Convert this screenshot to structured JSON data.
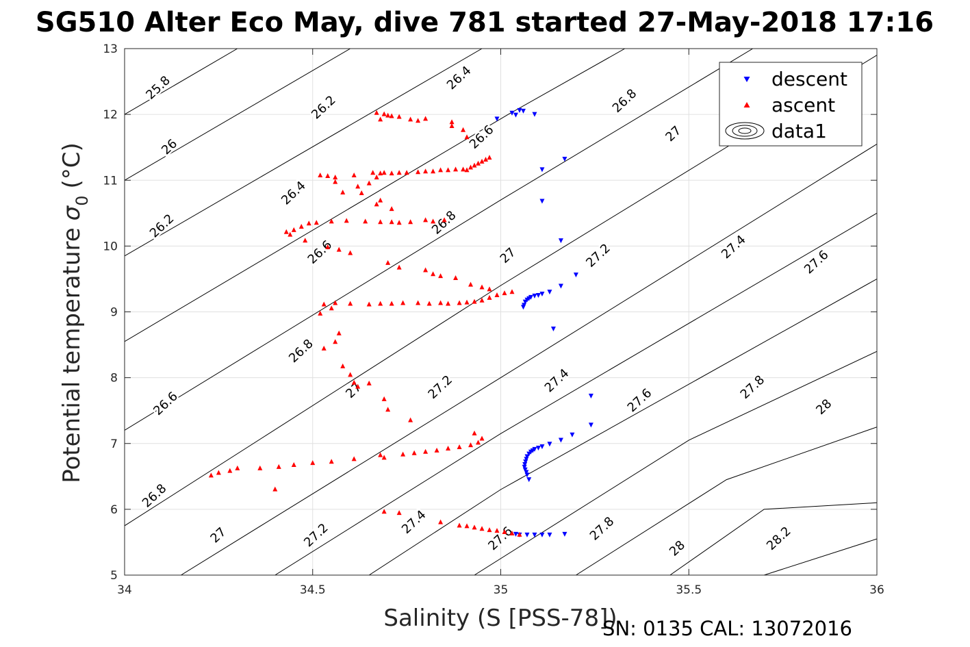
{
  "chart_data": {
    "type": "scatter",
    "title": "SG510 Alter Eco May, dive 781 started 27-May-2018 17:16",
    "xlabel": "Salinity (S [PSS-78])",
    "ylabel": "Potential temperature",
    "ylabel_sigma": "σ",
    "ylabel_sub": "0",
    "ylabel_unit": "(°C)",
    "footer": "SN: 0135  CAL: 13072016",
    "xlim": [
      34,
      36
    ],
    "ylim": [
      5,
      13
    ],
    "xticks": [
      34,
      34.5,
      35,
      35.5,
      36
    ],
    "xtick_labels": [
      "34",
      "34.5",
      "35",
      "35.5",
      "36"
    ],
    "yticks": [
      5,
      6,
      7,
      8,
      9,
      10,
      11,
      12,
      13
    ],
    "ytick_labels": [
      "5",
      "6",
      "7",
      "8",
      "9",
      "10",
      "11",
      "12",
      "13"
    ],
    "grid": true,
    "legend_position": "top-right",
    "legend": [
      "descent",
      "ascent",
      "data1"
    ],
    "colors": {
      "descent": "#0000ff",
      "ascent": "#ff0000",
      "contour": "#000000",
      "grid": "#e0e0e0"
    },
    "contour_levels": [
      "25.8",
      "26",
      "26.2",
      "26.4",
      "26.6",
      "26.8",
      "27",
      "27.2",
      "27.4",
      "27.6",
      "27.8",
      "28",
      "28.2"
    ],
    "contour_label_points": [
      {
        "text": "25.8",
        "x": 34.09,
        "y": 12.4
      },
      {
        "text": "26",
        "x": 34.12,
        "y": 11.5
      },
      {
        "text": "26.2",
        "x": 34.1,
        "y": 10.3
      },
      {
        "text": "26.6",
        "x": 34.11,
        "y": 7.6
      },
      {
        "text": "26.8",
        "x": 34.08,
        "y": 6.2
      },
      {
        "text": "26.2",
        "x": 34.53,
        "y": 12.1
      },
      {
        "text": "26.4",
        "x": 34.45,
        "y": 10.8
      },
      {
        "text": "26.6",
        "x": 34.52,
        "y": 9.9
      },
      {
        "text": "26.8",
        "x": 34.47,
        "y": 8.4
      },
      {
        "text": "27",
        "x": 34.25,
        "y": 5.6
      },
      {
        "text": "26.4",
        "x": 34.89,
        "y": 12.55
      },
      {
        "text": "26.6",
        "x": 34.95,
        "y": 11.65
      },
      {
        "text": "26.8",
        "x": 34.85,
        "y": 10.35
      },
      {
        "text": "27",
        "x": 34.61,
        "y": 7.8
      },
      {
        "text": "27.2",
        "x": 34.51,
        "y": 5.6
      },
      {
        "text": "27",
        "x": 35.02,
        "y": 9.85
      },
      {
        "text": "27.2",
        "x": 34.84,
        "y": 7.85
      },
      {
        "text": "27.4",
        "x": 34.77,
        "y": 5.8
      },
      {
        "text": "26.8",
        "x": 35.33,
        "y": 12.2
      },
      {
        "text": "27",
        "x": 35.46,
        "y": 11.7
      },
      {
        "text": "27.2",
        "x": 35.26,
        "y": 9.85
      },
      {
        "text": "27.4",
        "x": 35.15,
        "y": 7.95
      },
      {
        "text": "27.6",
        "x": 35.0,
        "y": 5.55
      },
      {
        "text": "27.4",
        "x": 35.62,
        "y": 9.98
      },
      {
        "text": "27.6",
        "x": 35.37,
        "y": 7.65
      },
      {
        "text": "27.8",
        "x": 35.27,
        "y": 5.7
      },
      {
        "text": "27.6",
        "x": 35.84,
        "y": 9.75
      },
      {
        "text": "27.8",
        "x": 35.67,
        "y": 7.85
      },
      {
        "text": "28",
        "x": 35.47,
        "y": 5.4
      },
      {
        "text": "28",
        "x": 35.86,
        "y": 7.55
      },
      {
        "text": "28.2",
        "x": 35.74,
        "y": 5.55
      }
    ],
    "series": [
      {
        "name": "descent",
        "marker": "triangle-down",
        "color": "#0000ff",
        "points": [
          [
            34.99,
            11.93
          ],
          [
            35.03,
            12.02
          ],
          [
            35.05,
            12.06
          ],
          [
            35.06,
            12.05
          ],
          [
            35.04,
            11.99
          ],
          [
            35.09,
            12.0
          ],
          [
            35.17,
            11.32
          ],
          [
            35.11,
            11.16
          ],
          [
            35.11,
            10.68
          ],
          [
            35.16,
            10.08
          ],
          [
            35.2,
            9.56
          ],
          [
            35.16,
            9.39
          ],
          [
            35.13,
            9.3
          ],
          [
            35.11,
            9.27
          ],
          [
            35.1,
            9.25
          ],
          [
            35.09,
            9.24
          ],
          [
            35.08,
            9.22
          ],
          [
            35.075,
            9.2
          ],
          [
            35.07,
            9.18
          ],
          [
            35.065,
            9.15
          ],
          [
            35.062,
            9.1
          ],
          [
            35.06,
            9.07
          ],
          [
            35.14,
            8.74
          ],
          [
            35.24,
            7.72
          ],
          [
            35.24,
            7.28
          ],
          [
            35.19,
            7.13
          ],
          [
            35.16,
            7.05
          ],
          [
            35.13,
            6.99
          ],
          [
            35.11,
            6.95
          ],
          [
            35.1,
            6.93
          ],
          [
            35.09,
            6.91
          ],
          [
            35.085,
            6.89
          ],
          [
            35.08,
            6.87
          ],
          [
            35.075,
            6.84
          ],
          [
            35.07,
            6.8
          ],
          [
            35.068,
            6.76
          ],
          [
            35.066,
            6.72
          ],
          [
            35.064,
            6.68
          ],
          [
            35.063,
            6.64
          ],
          [
            35.065,
            6.6
          ],
          [
            35.068,
            6.56
          ],
          [
            35.07,
            6.52
          ],
          [
            35.075,
            6.45
          ],
          [
            35.04,
            5.62
          ],
          [
            35.05,
            5.61
          ],
          [
            35.07,
            5.61
          ],
          [
            35.09,
            5.61
          ],
          [
            35.11,
            5.61
          ],
          [
            35.13,
            5.61
          ],
          [
            35.17,
            5.62
          ]
        ]
      },
      {
        "name": "ascent",
        "marker": "triangle-up",
        "color": "#ff0000",
        "points": [
          [
            34.67,
            12.03
          ],
          [
            34.69,
            12.01
          ],
          [
            34.7,
            11.99
          ],
          [
            34.71,
            11.98
          ],
          [
            34.73,
            11.97
          ],
          [
            34.68,
            11.93
          ],
          [
            34.76,
            11.93
          ],
          [
            34.78,
            11.91
          ],
          [
            34.8,
            11.94
          ],
          [
            34.87,
            11.89
          ],
          [
            34.87,
            11.83
          ],
          [
            34.9,
            11.77
          ],
          [
            34.91,
            11.66
          ],
          [
            34.52,
            11.08
          ],
          [
            34.54,
            11.07
          ],
          [
            34.56,
            11.05
          ],
          [
            34.61,
            11.08
          ],
          [
            34.66,
            11.12
          ],
          [
            34.68,
            11.11
          ],
          [
            34.69,
            11.12
          ],
          [
            34.71,
            11.11
          ],
          [
            34.73,
            11.12
          ],
          [
            34.75,
            11.12
          ],
          [
            34.78,
            11.13
          ],
          [
            34.8,
            11.14
          ],
          [
            34.82,
            11.14
          ],
          [
            34.84,
            11.16
          ],
          [
            34.86,
            11.16
          ],
          [
            34.88,
            11.17
          ],
          [
            34.9,
            11.17
          ],
          [
            34.91,
            11.16
          ],
          [
            34.92,
            11.2
          ],
          [
            34.93,
            11.23
          ],
          [
            34.94,
            11.26
          ],
          [
            34.95,
            11.29
          ],
          [
            34.96,
            11.32
          ],
          [
            34.97,
            11.35
          ],
          [
            34.67,
            11.05
          ],
          [
            34.65,
            10.96
          ],
          [
            34.56,
            10.98
          ],
          [
            34.62,
            10.91
          ],
          [
            34.58,
            10.82
          ],
          [
            34.63,
            10.81
          ],
          [
            34.67,
            10.64
          ],
          [
            34.68,
            10.7
          ],
          [
            34.71,
            10.57
          ],
          [
            34.43,
            10.22
          ],
          [
            34.45,
            10.25
          ],
          [
            34.47,
            10.3
          ],
          [
            34.49,
            10.35
          ],
          [
            34.51,
            10.36
          ],
          [
            34.55,
            10.38
          ],
          [
            34.59,
            10.39
          ],
          [
            34.64,
            10.38
          ],
          [
            34.68,
            10.37
          ],
          [
            34.71,
            10.37
          ],
          [
            34.73,
            10.36
          ],
          [
            34.76,
            10.37
          ],
          [
            34.8,
            10.4
          ],
          [
            34.82,
            10.38
          ],
          [
            34.85,
            10.4
          ],
          [
            34.44,
            10.18
          ],
          [
            34.48,
            10.09
          ],
          [
            34.54,
            9.99
          ],
          [
            34.57,
            9.95
          ],
          [
            34.6,
            9.9
          ],
          [
            34.7,
            9.75
          ],
          [
            34.73,
            9.68
          ],
          [
            34.8,
            9.64
          ],
          [
            34.82,
            9.58
          ],
          [
            34.84,
            9.55
          ],
          [
            34.88,
            9.52
          ],
          [
            34.92,
            9.42
          ],
          [
            34.95,
            9.38
          ],
          [
            34.97,
            9.35
          ],
          [
            34.53,
            9.12
          ],
          [
            34.56,
            9.14
          ],
          [
            34.6,
            9.13
          ],
          [
            34.65,
            9.12
          ],
          [
            34.68,
            9.13
          ],
          [
            34.71,
            9.13
          ],
          [
            34.74,
            9.14
          ],
          [
            34.78,
            9.14
          ],
          [
            34.81,
            9.13
          ],
          [
            34.84,
            9.14
          ],
          [
            34.86,
            9.13
          ],
          [
            34.89,
            9.14
          ],
          [
            34.91,
            9.15
          ],
          [
            34.93,
            9.16
          ],
          [
            34.95,
            9.18
          ],
          [
            34.97,
            9.22
          ],
          [
            34.99,
            9.26
          ],
          [
            35.01,
            9.29
          ],
          [
            35.03,
            9.31
          ],
          [
            34.52,
            8.98
          ],
          [
            34.55,
            9.06
          ],
          [
            34.57,
            8.68
          ],
          [
            34.56,
            8.55
          ],
          [
            34.53,
            8.45
          ],
          [
            34.58,
            8.18
          ],
          [
            34.6,
            8.05
          ],
          [
            34.61,
            7.93
          ],
          [
            34.62,
            7.87
          ],
          [
            34.65,
            7.92
          ],
          [
            34.69,
            7.68
          ],
          [
            34.7,
            7.52
          ],
          [
            34.76,
            7.36
          ],
          [
            34.23,
            6.52
          ],
          [
            34.25,
            6.56
          ],
          [
            34.28,
            6.59
          ],
          [
            34.3,
            6.63
          ],
          [
            34.36,
            6.63
          ],
          [
            34.41,
            6.65
          ],
          [
            34.45,
            6.68
          ],
          [
            34.5,
            6.71
          ],
          [
            34.55,
            6.73
          ],
          [
            34.61,
            6.77
          ],
          [
            34.69,
            6.79
          ],
          [
            34.74,
            6.84
          ],
          [
            34.77,
            6.86
          ],
          [
            34.8,
            6.88
          ],
          [
            34.83,
            6.9
          ],
          [
            34.86,
            6.93
          ],
          [
            34.89,
            6.95
          ],
          [
            34.92,
            6.98
          ],
          [
            34.94,
            7.02
          ],
          [
            34.95,
            7.08
          ],
          [
            34.93,
            7.16
          ],
          [
            34.4,
            6.31
          ],
          [
            34.68,
            6.83
          ],
          [
            34.69,
            5.97
          ],
          [
            34.73,
            5.95
          ],
          [
            34.84,
            5.81
          ],
          [
            34.89,
            5.76
          ],
          [
            34.91,
            5.75
          ],
          [
            34.93,
            5.73
          ],
          [
            34.95,
            5.71
          ],
          [
            34.97,
            5.69
          ],
          [
            34.99,
            5.68
          ],
          [
            35.01,
            5.66
          ],
          [
            35.03,
            5.64
          ],
          [
            35.05,
            5.62
          ]
        ]
      }
    ],
    "contours": [
      {
        "label": "25.8",
        "points": [
          [
            34.0,
            12.0
          ],
          [
            34.3,
            13.0
          ]
        ]
      },
      {
        "label": "26",
        "points": [
          [
            34.0,
            11.0
          ],
          [
            34.6,
            13.0
          ]
        ]
      },
      {
        "label": "26.2",
        "points": [
          [
            34.0,
            9.85
          ],
          [
            34.95,
            13.0
          ]
        ]
      },
      {
        "label": "26.4",
        "points": [
          [
            34.0,
            8.55
          ],
          [
            35.02,
            12.0
          ],
          [
            35.33,
            13.0
          ]
        ]
      },
      {
        "label": "26.6",
        "points": [
          [
            34.0,
            7.2
          ],
          [
            35.0,
            10.7
          ],
          [
            35.67,
            13.0
          ]
        ]
      },
      {
        "label": "26.8",
        "points": [
          [
            34.0,
            5.75
          ],
          [
            35.0,
            9.4
          ],
          [
            36.0,
            12.9
          ]
        ]
      },
      {
        "label": "27",
        "points": [
          [
            34.15,
            5.0
          ],
          [
            35.0,
            8.0
          ],
          [
            36.0,
            11.55
          ]
        ]
      },
      {
        "label": "27.2",
        "points": [
          [
            34.4,
            5.0
          ],
          [
            35.0,
            7.15
          ],
          [
            36.0,
            10.5
          ]
        ]
      },
      {
        "label": "27.4",
        "points": [
          [
            34.65,
            5.0
          ],
          [
            35.0,
            6.3
          ],
          [
            36.0,
            9.5
          ]
        ]
      },
      {
        "label": "27.6",
        "points": [
          [
            34.93,
            5.0
          ],
          [
            35.5,
            7.05
          ],
          [
            36.0,
            8.4
          ]
        ]
      },
      {
        "label": "27.8",
        "points": [
          [
            35.2,
            5.0
          ],
          [
            35.6,
            6.45
          ],
          [
            36.0,
            7.25
          ]
        ]
      },
      {
        "label": "28",
        "points": [
          [
            35.45,
            5.0
          ],
          [
            35.7,
            6.0
          ],
          [
            36.0,
            6.1
          ]
        ]
      },
      {
        "label": "28.2",
        "points": [
          [
            35.7,
            5.0
          ],
          [
            36.0,
            5.55
          ]
        ]
      }
    ]
  }
}
